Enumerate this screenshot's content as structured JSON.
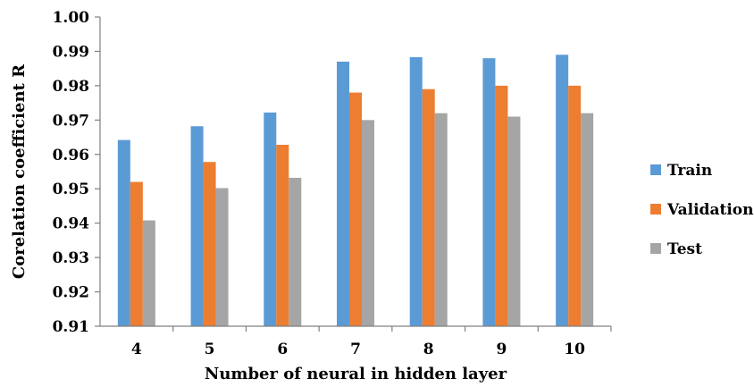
{
  "chart_data": {
    "type": "bar",
    "xlabel": "Number of neural in hidden layer",
    "ylabel": "Corelation coefficient R",
    "categories": [
      "4",
      "5",
      "6",
      "7",
      "8",
      "9",
      "10"
    ],
    "ylim": [
      0.91,
      1.0
    ],
    "yticks": [
      "0.91",
      "0.92",
      "0.93",
      "0.94",
      "0.95",
      "0.96",
      "0.97",
      "0.98",
      "0.99",
      "1.00"
    ],
    "legend_position": "right",
    "grid": false,
    "series": [
      {
        "name": "Train",
        "color": "#5b9bd5",
        "values": [
          0.9642,
          0.9682,
          0.9722,
          0.987,
          0.9883,
          0.988,
          0.989
        ]
      },
      {
        "name": "Validation",
        "color": "#ed7d31",
        "values": [
          0.952,
          0.9578,
          0.9628,
          0.978,
          0.979,
          0.98,
          0.98
        ]
      },
      {
        "name": "Test",
        "color": "#a5a5a5",
        "values": [
          0.9408,
          0.9502,
          0.9532,
          0.97,
          0.972,
          0.971,
          0.972
        ]
      }
    ]
  }
}
